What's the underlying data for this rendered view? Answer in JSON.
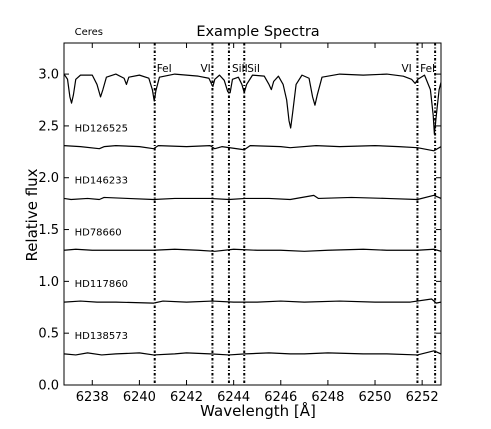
{
  "chart_data": {
    "type": "line",
    "title": "Example Spectra",
    "xlabel": "Wavelength [Å]",
    "ylabel": "Relative flux",
    "xlim": [
      6236.8,
      6252.8
    ],
    "ylim": [
      0.0,
      3.3
    ],
    "xticks": [
      6238,
      6240,
      6242,
      6244,
      6246,
      6248,
      6250,
      6252
    ],
    "yticks": [
      0.0,
      0.5,
      1.0,
      1.5,
      2.0,
      2.5,
      3.0
    ],
    "ytick_labels": [
      "0.0",
      "0.5",
      "1.0",
      "1.5",
      "2.0",
      "2.5",
      "3.0"
    ],
    "grid": false,
    "line_markers": [
      {
        "label": "FeI",
        "x": 6240.65
      },
      {
        "label": "VI",
        "x": 6243.1
      },
      {
        "label": "SiII",
        "x": 6243.8
      },
      {
        "label": "SiI",
        "x": 6244.45
      },
      {
        "label": "VI",
        "x": 6251.8
      },
      {
        "label": "FeI",
        "x": 6252.55
      }
    ],
    "series": [
      {
        "name": "Ceres",
        "baseline": 3.0,
        "points": [
          [
            6236.8,
            3.0
          ],
          [
            6236.95,
            2.95
          ],
          [
            6237.05,
            2.78
          ],
          [
            6237.12,
            2.72
          ],
          [
            6237.2,
            2.8
          ],
          [
            6237.3,
            2.95
          ],
          [
            6237.5,
            2.99
          ],
          [
            6238.0,
            2.99
          ],
          [
            6238.2,
            2.9
          ],
          [
            6238.35,
            2.78
          ],
          [
            6238.45,
            2.85
          ],
          [
            6238.6,
            2.97
          ],
          [
            6239.0,
            3.0
          ],
          [
            6239.35,
            2.96
          ],
          [
            6239.45,
            2.9
          ],
          [
            6239.55,
            2.97
          ],
          [
            6240.0,
            2.99
          ],
          [
            6240.4,
            2.96
          ],
          [
            6240.55,
            2.85
          ],
          [
            6240.63,
            2.74
          ],
          [
            6240.7,
            2.84
          ],
          [
            6240.85,
            2.97
          ],
          [
            6241.5,
            3.0
          ],
          [
            6242.0,
            2.99
          ],
          [
            6242.5,
            2.98
          ],
          [
            6242.95,
            2.96
          ],
          [
            6243.05,
            2.91
          ],
          [
            6243.12,
            2.88
          ],
          [
            6243.2,
            2.95
          ],
          [
            6243.4,
            2.99
          ],
          [
            6243.6,
            2.94
          ],
          [
            6243.75,
            2.83
          ],
          [
            6243.85,
            2.82
          ],
          [
            6243.95,
            2.95
          ],
          [
            6244.2,
            2.97
          ],
          [
            6244.35,
            2.9
          ],
          [
            6244.45,
            2.82
          ],
          [
            6244.55,
            2.9
          ],
          [
            6244.8,
            2.99
          ],
          [
            6245.3,
            2.98
          ],
          [
            6245.5,
            2.9
          ],
          [
            6245.6,
            2.85
          ],
          [
            6245.7,
            2.93
          ],
          [
            6245.9,
            2.98
          ],
          [
            6246.1,
            2.9
          ],
          [
            6246.25,
            2.75
          ],
          [
            6246.35,
            2.55
          ],
          [
            6246.42,
            2.48
          ],
          [
            6246.5,
            2.62
          ],
          [
            6246.65,
            2.9
          ],
          [
            6246.9,
            2.99
          ],
          [
            6247.2,
            2.96
          ],
          [
            6247.35,
            2.78
          ],
          [
            6247.45,
            2.7
          ],
          [
            6247.55,
            2.8
          ],
          [
            6247.75,
            2.97
          ],
          [
            6248.5,
            3.0
          ],
          [
            6249.5,
            2.99
          ],
          [
            6250.5,
            3.0
          ],
          [
            6251.2,
            2.98
          ],
          [
            6251.55,
            2.95
          ],
          [
            6251.7,
            2.91
          ],
          [
            6251.82,
            2.95
          ],
          [
            6252.1,
            2.99
          ],
          [
            6252.35,
            2.85
          ],
          [
            6252.47,
            2.6
          ],
          [
            6252.52,
            2.42
          ],
          [
            6252.6,
            2.6
          ],
          [
            6252.72,
            2.85
          ],
          [
            6252.8,
            2.92
          ]
        ]
      },
      {
        "name": "HD126525",
        "baseline": 2.3,
        "points": [
          [
            6236.8,
            2.31
          ],
          [
            6237.5,
            2.3
          ],
          [
            6238.3,
            2.28
          ],
          [
            6238.5,
            2.3
          ],
          [
            6239.0,
            2.31
          ],
          [
            6240.0,
            2.3
          ],
          [
            6240.6,
            2.28
          ],
          [
            6240.8,
            2.31
          ],
          [
            6242.0,
            2.3
          ],
          [
            6243.0,
            2.31
          ],
          [
            6243.2,
            2.28
          ],
          [
            6243.5,
            2.3
          ],
          [
            6244.45,
            2.27
          ],
          [
            6244.7,
            2.31
          ],
          [
            6246.0,
            2.3
          ],
          [
            6246.4,
            2.29
          ],
          [
            6247.5,
            2.31
          ],
          [
            6248.5,
            2.3
          ],
          [
            6250.0,
            2.31
          ],
          [
            6251.0,
            2.3
          ],
          [
            6251.8,
            2.29
          ],
          [
            6252.5,
            2.26
          ],
          [
            6252.8,
            2.3
          ]
        ]
      },
      {
        "name": "HD146233",
        "baseline": 1.8,
        "points": [
          [
            6236.8,
            1.8
          ],
          [
            6237.1,
            1.79
          ],
          [
            6237.8,
            1.8
          ],
          [
            6238.3,
            1.79
          ],
          [
            6238.5,
            1.81
          ],
          [
            6239.5,
            1.8
          ],
          [
            6240.6,
            1.79
          ],
          [
            6241.5,
            1.8
          ],
          [
            6243.0,
            1.8
          ],
          [
            6243.8,
            1.79
          ],
          [
            6244.5,
            1.8
          ],
          [
            6245.5,
            1.8
          ],
          [
            6246.4,
            1.79
          ],
          [
            6247.4,
            1.83
          ],
          [
            6247.6,
            1.8
          ],
          [
            6249.0,
            1.81
          ],
          [
            6250.5,
            1.8
          ],
          [
            6251.8,
            1.79
          ],
          [
            6252.5,
            1.83
          ],
          [
            6252.8,
            1.8
          ]
        ]
      },
      {
        "name": "HD78660",
        "baseline": 1.3,
        "points": [
          [
            6236.8,
            1.3
          ],
          [
            6237.3,
            1.31
          ],
          [
            6238.0,
            1.3
          ],
          [
            6239.0,
            1.3
          ],
          [
            6240.6,
            1.3
          ],
          [
            6241.5,
            1.31
          ],
          [
            6242.5,
            1.3
          ],
          [
            6243.2,
            1.29
          ],
          [
            6244.0,
            1.31
          ],
          [
            6245.0,
            1.3
          ],
          [
            6246.0,
            1.3
          ],
          [
            6247.0,
            1.29
          ],
          [
            6248.0,
            1.3
          ],
          [
            6249.5,
            1.31
          ],
          [
            6250.5,
            1.3
          ],
          [
            6251.8,
            1.3
          ],
          [
            6252.5,
            1.31
          ],
          [
            6252.8,
            1.29
          ]
        ]
      },
      {
        "name": "HD117860",
        "baseline": 0.8,
        "points": [
          [
            6236.8,
            0.8
          ],
          [
            6237.5,
            0.81
          ],
          [
            6238.2,
            0.8
          ],
          [
            6239.0,
            0.8
          ],
          [
            6240.6,
            0.79
          ],
          [
            6241.0,
            0.81
          ],
          [
            6242.0,
            0.8
          ],
          [
            6243.1,
            0.81
          ],
          [
            6244.0,
            0.8
          ],
          [
            6245.0,
            0.8
          ],
          [
            6246.0,
            0.81
          ],
          [
            6247.0,
            0.8
          ],
          [
            6248.5,
            0.81
          ],
          [
            6250.0,
            0.8
          ],
          [
            6251.5,
            0.8
          ],
          [
            6252.4,
            0.83
          ],
          [
            6252.6,
            0.79
          ],
          [
            6252.8,
            0.8
          ]
        ]
      },
      {
        "name": "HD138573",
        "baseline": 0.3,
        "points": [
          [
            6236.8,
            0.3
          ],
          [
            6237.3,
            0.29
          ],
          [
            6237.8,
            0.31
          ],
          [
            6238.4,
            0.29
          ],
          [
            6239.0,
            0.3
          ],
          [
            6240.0,
            0.31
          ],
          [
            6240.6,
            0.29
          ],
          [
            6241.5,
            0.3
          ],
          [
            6242.0,
            0.31
          ],
          [
            6243.0,
            0.3
          ],
          [
            6243.8,
            0.29
          ],
          [
            6244.5,
            0.3
          ],
          [
            6245.5,
            0.31
          ],
          [
            6246.4,
            0.3
          ],
          [
            6247.0,
            0.3
          ],
          [
            6248.0,
            0.31
          ],
          [
            6249.5,
            0.3
          ],
          [
            6250.5,
            0.3
          ],
          [
            6251.8,
            0.29
          ],
          [
            6252.5,
            0.33
          ],
          [
            6252.8,
            0.3
          ]
        ]
      }
    ]
  }
}
